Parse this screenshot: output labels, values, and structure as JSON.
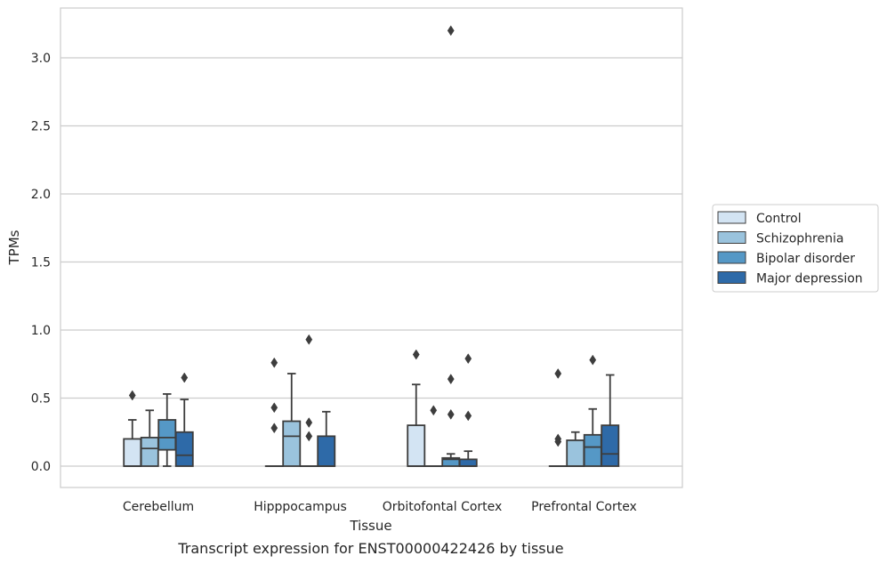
{
  "chart_data": {
    "type": "box",
    "title": "",
    "caption": "Transcript expression for ENST00000422426 by tissue",
    "xlabel": "Tissue",
    "ylabel": "TPMs",
    "ylim": [
      -0.16,
      3.37
    ],
    "yticks": [
      "0.0",
      "0.5",
      "1.0",
      "1.5",
      "2.0",
      "2.5",
      "3.0"
    ],
    "ytick_values": [
      0.0,
      0.5,
      1.0,
      1.5,
      2.0,
      2.5,
      3.0
    ],
    "grid": "horizontal",
    "legend_position": "right",
    "categories": [
      "Cerebellum",
      "Hipppocampus",
      "Orbitofontal Cortex",
      "Prefrontal Cortex"
    ],
    "series": [
      {
        "name": "Control",
        "color": "#d3e4f3",
        "boxes": [
          {
            "q1": 0.0,
            "median": 0.0,
            "q3": 0.2,
            "whisker_low": 0.0,
            "whisker_high": 0.34,
            "outliers": [
              0.52
            ]
          },
          {
            "q1": 0.0,
            "median": 0.0,
            "q3": 0.0,
            "whisker_low": 0.0,
            "whisker_high": 0.0,
            "outliers": [
              0.28,
              0.43,
              0.76
            ]
          },
          {
            "q1": 0.0,
            "median": 0.0,
            "q3": 0.3,
            "whisker_low": 0.0,
            "whisker_high": 0.6,
            "outliers": [
              0.82
            ]
          },
          {
            "q1": 0.0,
            "median": 0.0,
            "q3": 0.0,
            "whisker_low": 0.0,
            "whisker_high": 0.0,
            "outliers": [
              0.18,
              0.2,
              0.68
            ]
          }
        ]
      },
      {
        "name": "Schizophrenia",
        "color": "#9ac3dd",
        "boxes": [
          {
            "q1": 0.0,
            "median": 0.13,
            "q3": 0.21,
            "whisker_low": 0.0,
            "whisker_high": 0.41,
            "outliers": []
          },
          {
            "q1": 0.0,
            "median": 0.22,
            "q3": 0.33,
            "whisker_low": 0.0,
            "whisker_high": 0.68,
            "outliers": []
          },
          {
            "q1": 0.0,
            "median": 0.0,
            "q3": 0.0,
            "whisker_low": 0.0,
            "whisker_high": 0.0,
            "outliers": [
              0.41
            ]
          },
          {
            "q1": 0.0,
            "median": 0.0,
            "q3": 0.19,
            "whisker_low": 0.0,
            "whisker_high": 0.25,
            "outliers": []
          }
        ]
      },
      {
        "name": "Bipolar disorder",
        "color": "#5598c6",
        "boxes": [
          {
            "q1": 0.12,
            "median": 0.21,
            "q3": 0.34,
            "whisker_low": 0.0,
            "whisker_high": 0.53,
            "outliers": []
          },
          {
            "q1": 0.0,
            "median": 0.0,
            "q3": 0.0,
            "whisker_low": 0.0,
            "whisker_high": 0.0,
            "outliers": [
              0.22,
              0.32,
              0.93
            ]
          },
          {
            "q1": 0.0,
            "median": 0.05,
            "q3": 0.06,
            "whisker_low": 0.0,
            "whisker_high": 0.09,
            "outliers": [
              0.38,
              0.64,
              3.2
            ]
          },
          {
            "q1": 0.0,
            "median": 0.14,
            "q3": 0.23,
            "whisker_low": 0.0,
            "whisker_high": 0.42,
            "outliers": [
              0.78
            ]
          }
        ]
      },
      {
        "name": "Major depression",
        "color": "#2e6aa8",
        "boxes": [
          {
            "q1": 0.0,
            "median": 0.08,
            "q3": 0.25,
            "whisker_low": 0.0,
            "whisker_high": 0.49,
            "outliers": [
              0.65
            ]
          },
          {
            "q1": 0.0,
            "median": 0.0,
            "q3": 0.22,
            "whisker_low": 0.0,
            "whisker_high": 0.4,
            "outliers": []
          },
          {
            "q1": 0.0,
            "median": 0.0,
            "q3": 0.05,
            "whisker_low": 0.0,
            "whisker_high": 0.11,
            "outliers": [
              0.37,
              0.79
            ]
          },
          {
            "q1": 0.0,
            "median": 0.09,
            "q3": 0.3,
            "whisker_low": 0.0,
            "whisker_high": 0.67,
            "outliers": []
          }
        ]
      }
    ]
  }
}
